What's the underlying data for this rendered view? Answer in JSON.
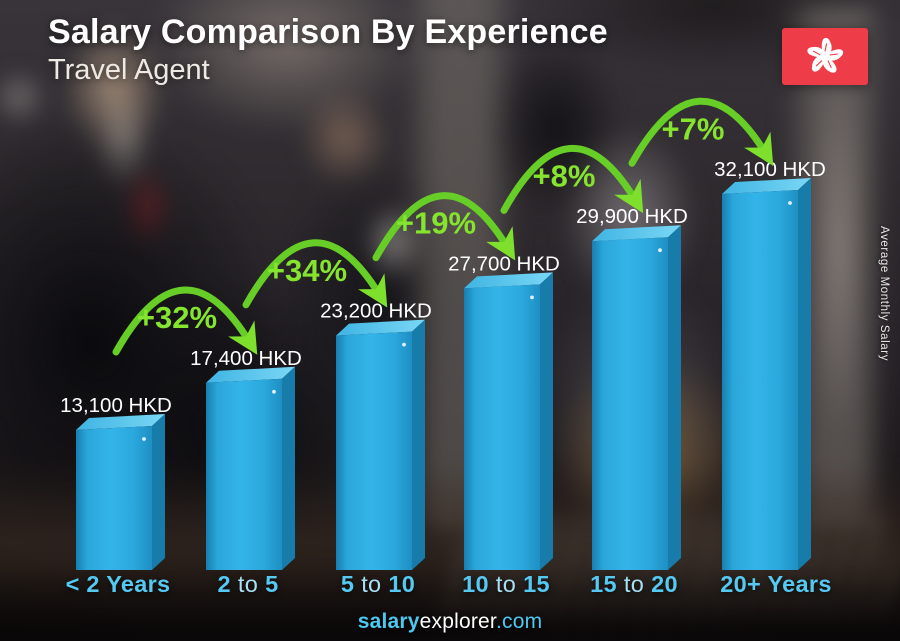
{
  "header": {
    "title": "Salary Comparison By Experience",
    "subtitle": "Travel Agent"
  },
  "flag": {
    "country": "Hong Kong",
    "field_color": "#ee3c49",
    "emblem_color": "#ffffff"
  },
  "side_label": "Average Monthly Salary",
  "footer": {
    "brand_bold": "salary",
    "brand_rest": "explorer",
    "domain": ".com"
  },
  "chart_data": {
    "type": "bar",
    "title": "Salary Comparison By Experience",
    "subtitle": "Travel Agent",
    "unit": "HKD",
    "categories": [
      "< 2 Years",
      "2 to 5",
      "5 to 10",
      "10 to 15",
      "15 to 20",
      "20+ Years"
    ],
    "values": [
      13100,
      17400,
      23200,
      27700,
      29900,
      32100
    ],
    "value_labels": [
      "13,100 HKD",
      "17,400 HKD",
      "23,200 HKD",
      "27,700 HKD",
      "29,900 HKD",
      "32,100 HKD"
    ],
    "pct_increase": [
      "+32%",
      "+34%",
      "+19%",
      "+8%",
      "+7%"
    ],
    "xlabel": "",
    "ylabel": "Average Monthly Salary",
    "legend": null,
    "grid": false,
    "colors": {
      "bar_front": "#2baade",
      "bar_top": "#6ccff2",
      "bar_side": "#177ca9",
      "arrow_green": "#66ce26",
      "percent_text": "#85e42e",
      "value_text": "#ffffff",
      "category_strong": "#55c9f1",
      "category_to": "#a9dff4"
    }
  }
}
